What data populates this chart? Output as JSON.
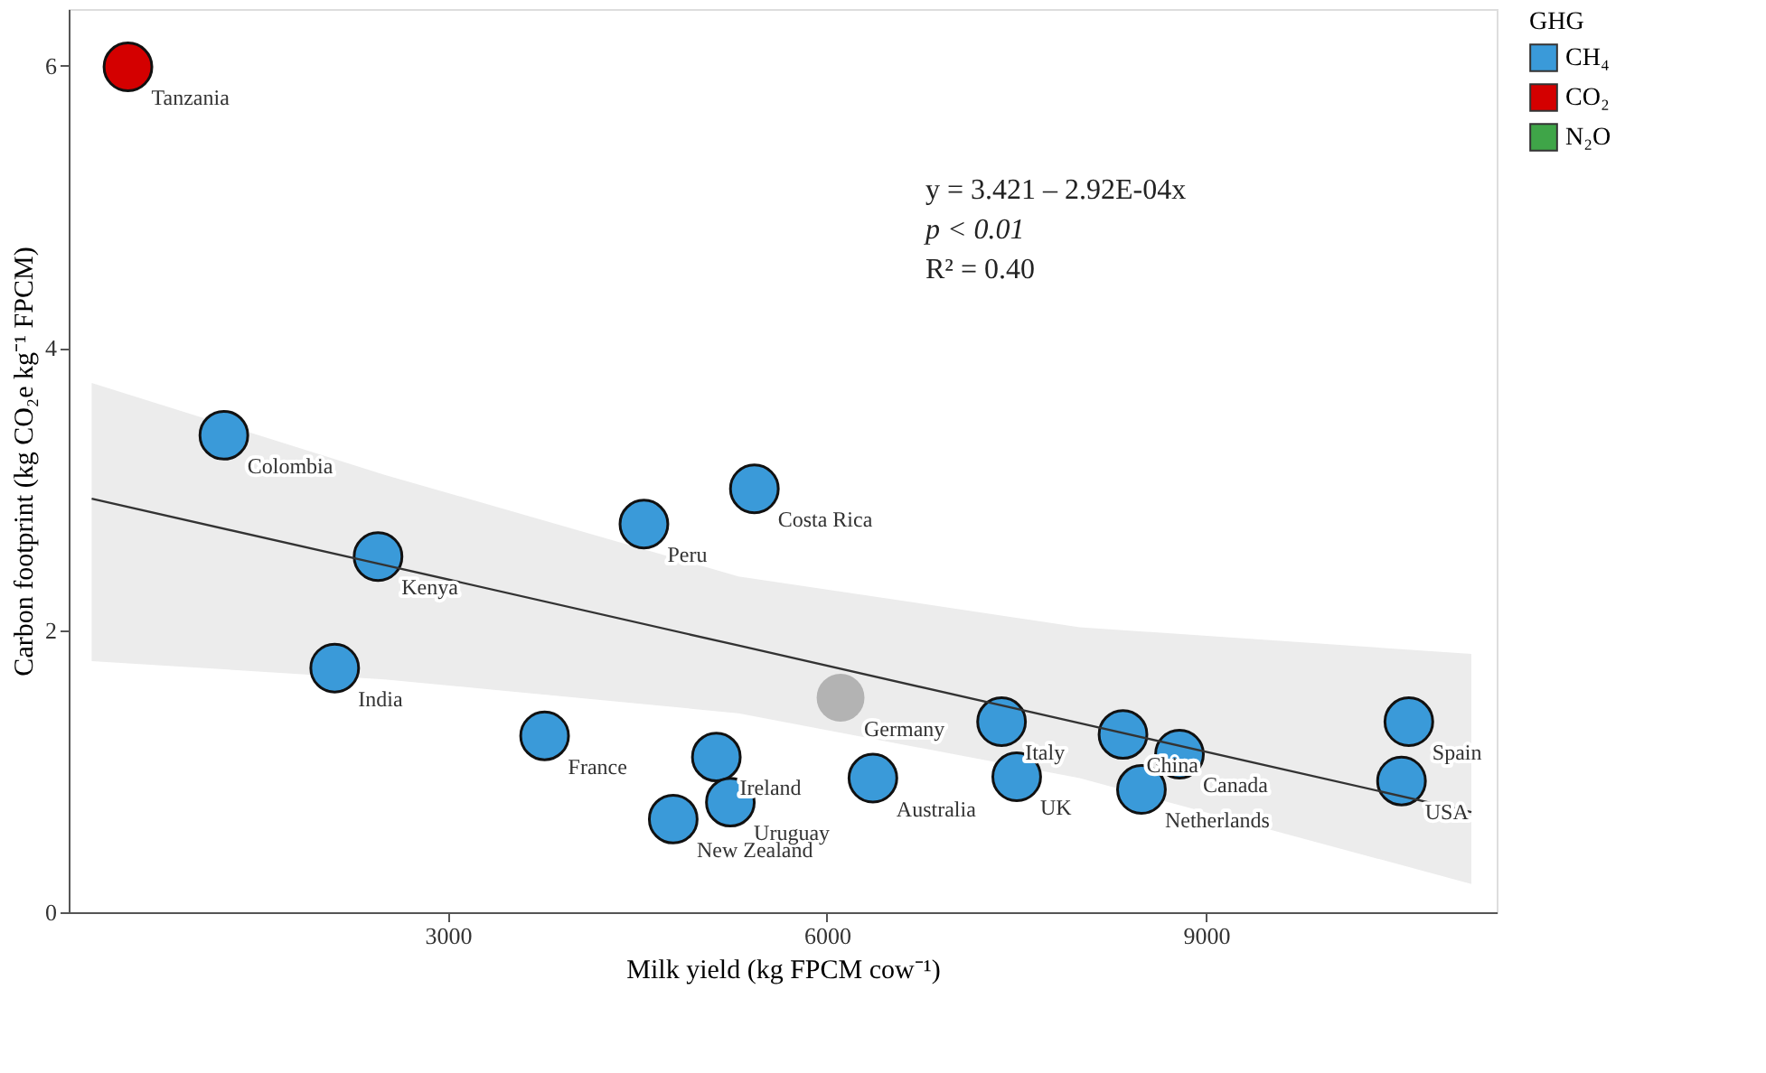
{
  "chart_data": {
    "type": "scatter",
    "xlabel": "Milk yield (kg FPCM cow⁻¹)",
    "ylabel": "Carbon footprint (kg CO₂e kg⁻¹ FPCM)",
    "legend_title": "GHG",
    "xlim": [
      0,
      11300
    ],
    "xticks": [
      3000,
      6000,
      9000
    ],
    "ylim": [
      0,
      6.4
    ],
    "yticks": [
      0,
      2,
      4,
      6
    ],
    "grid": false,
    "legend": "right",
    "marker": "circle",
    "series": [
      {
        "name": "CH₄",
        "color": "#3a9ad9",
        "x": [
          1228,
          2448,
          2105,
          4552,
          3766,
          5125,
          4784,
          5236,
          5426,
          6364,
          7382,
          7502,
          8343,
          8489,
          8790,
          10605,
          10547
        ],
        "values": [
          3.38,
          2.52,
          1.73,
          2.75,
          1.25,
          1.1,
          0.66,
          0.78,
          3.0,
          0.95,
          1.35,
          0.96,
          1.26,
          0.87,
          1.12,
          1.35,
          0.93
        ]
      },
      {
        "name": "CO₂",
        "color": "#d40000",
        "x": [
          469
        ],
        "values": [
          5.99
        ]
      },
      {
        "name": "N₂O",
        "color": "#3fa548"
      },
      {
        "color": "#b3b3b3",
        "x": [
          6108
        ],
        "values": [
          1.52
        ]
      },
      {
        "color": "#333333",
        "type": "line",
        "marker": "none",
        "x": [
          182,
          2500,
          5300,
          8000,
          11100
        ],
        "values": [
          2.93,
          2.46,
          1.89,
          1.34,
          0.71
        ],
        "lower": [
          1.78,
          1.65,
          1.41,
          0.95,
          0.2
        ],
        "upper": [
          3.75,
          3.1,
          2.38,
          2.02,
          1.83
        ]
      }
    ],
    "annotations": [
      {
        "text": "Tanzania",
        "x": 469,
        "y": 5.99
      },
      {
        "text": "Colombia",
        "x": 1228,
        "y": 3.38
      },
      {
        "text": "Kenya",
        "x": 2448,
        "y": 2.52
      },
      {
        "text": "India",
        "x": 2105,
        "y": 1.73
      },
      {
        "text": "Peru",
        "x": 4552,
        "y": 2.75
      },
      {
        "text": "France",
        "x": 3766,
        "y": 1.25
      },
      {
        "text": "Ireland",
        "x": 5125,
        "y": 1.1
      },
      {
        "text": "New Zealand",
        "x": 4784,
        "y": 0.66
      },
      {
        "text": "Uruguay",
        "x": 5236,
        "y": 0.78
      },
      {
        "text": "Costa Rica",
        "x": 5426,
        "y": 3.0
      },
      {
        "text": "Germany",
        "x": 6108,
        "y": 1.52
      },
      {
        "text": "Australia",
        "x": 6364,
        "y": 0.95
      },
      {
        "text": "Italy",
        "x": 7382,
        "y": 1.35
      },
      {
        "text": "UK",
        "x": 7502,
        "y": 0.96
      },
      {
        "text": "China",
        "x": 8343,
        "y": 1.26
      },
      {
        "text": "Netherlands",
        "x": 8489,
        "y": 0.87
      },
      {
        "text": "Canada",
        "x": 8790,
        "y": 1.12
      },
      {
        "text": "Spain",
        "x": 10605,
        "y": 1.35
      },
      {
        "text": "USA",
        "x": 10547,
        "y": 0.93
      },
      "y = 3.421 – 2.92E-04x",
      "p < 0.01",
      "R² = 0.40"
    ]
  }
}
